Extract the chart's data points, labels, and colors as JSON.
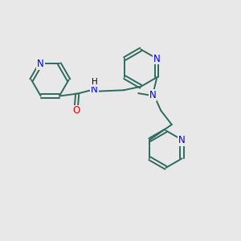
{
  "bg_color": "#e8e8e8",
  "bond_color": "#2d6b5e",
  "N_color": "#0000ee",
  "O_color": "#ee0000",
  "C_color": "#000000",
  "font_size": 8.5,
  "figsize": [
    3.0,
    3.0
  ],
  "dpi": 100,
  "xlim": [
    0,
    10
  ],
  "ylim": [
    0,
    10
  ]
}
